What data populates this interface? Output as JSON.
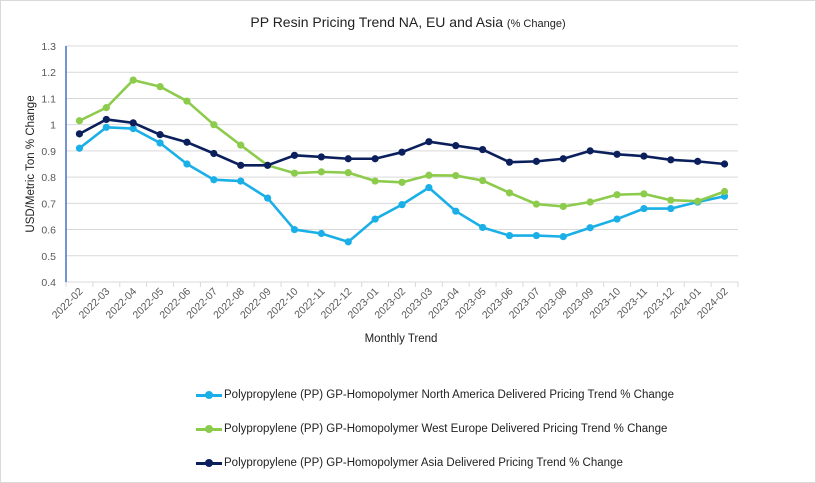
{
  "chart_data": {
    "type": "line",
    "title": "PP Resin Pricing Trend NA, EU and Asia",
    "title_suffix": "(% Change)",
    "xlabel": "Monthly Trend",
    "ylabel": "USD/Metric Ton % Change",
    "ylim": [
      0.4,
      1.3
    ],
    "yticks": [
      0.4,
      0.5,
      0.6,
      0.7,
      0.8,
      0.9,
      1,
      1.1,
      1.2,
      1.3
    ],
    "ytick_labels": [
      "0.4",
      "0.5",
      "0.6",
      "0.7",
      "0.8",
      "0.9",
      "1",
      "1.1",
      "1.2",
      "1.3"
    ],
    "grid": true,
    "legend_position": "bottom",
    "categories": [
      "2022-02",
      "2022-03",
      "2022-04",
      "2022-05",
      "2022-06",
      "2022-07",
      "2022-08",
      "2022-09",
      "2022-10",
      "2022-11",
      "2022-12",
      "2023-01",
      "2023-02",
      "2023-03",
      "2023-04",
      "2023-05",
      "2023-06",
      "2023-07",
      "2023-08",
      "2023-09",
      "2023-10",
      "2023-11",
      "2023-12",
      "2024-01",
      "2024-02"
    ],
    "series": [
      {
        "name": "Polypropylene (PP) GP-Homopolymer North America Delivered Pricing Trend % Change",
        "color": "#1AAFE6",
        "values": [
          0.91,
          0.99,
          0.985,
          0.93,
          0.85,
          0.79,
          0.785,
          0.72,
          0.6,
          0.585,
          0.553,
          0.64,
          0.695,
          0.76,
          0.67,
          0.608,
          0.577,
          0.577,
          0.573,
          0.607,
          0.64,
          0.68,
          0.68,
          0.705,
          0.727
        ]
      },
      {
        "name": "Polypropylene (PP) GP-Homopolymer West Europe Delivered Pricing Trend % Change",
        "color": "#8CCB4C",
        "values": [
          1.015,
          1.065,
          1.17,
          1.145,
          1.09,
          1.0,
          0.922,
          0.845,
          0.815,
          0.82,
          0.817,
          0.785,
          0.78,
          0.807,
          0.806,
          0.787,
          0.74,
          0.697,
          0.688,
          0.705,
          0.733,
          0.736,
          0.712,
          0.708,
          0.745
        ]
      },
      {
        "name": "Polypropylene (PP) GP-Homopolymer Asia Delivered Pricing Trend % Change",
        "color": "#0B1F5C",
        "values": [
          0.965,
          1.02,
          1.007,
          0.962,
          0.933,
          0.89,
          0.845,
          0.845,
          0.883,
          0.877,
          0.87,
          0.87,
          0.895,
          0.935,
          0.92,
          0.905,
          0.857,
          0.86,
          0.87,
          0.9,
          0.887,
          0.88,
          0.866,
          0.86,
          0.85
        ]
      }
    ],
    "colors": {
      "gridline": "#d9d9d9",
      "y_axis_line": "#4472C4",
      "text": "#595959"
    }
  }
}
